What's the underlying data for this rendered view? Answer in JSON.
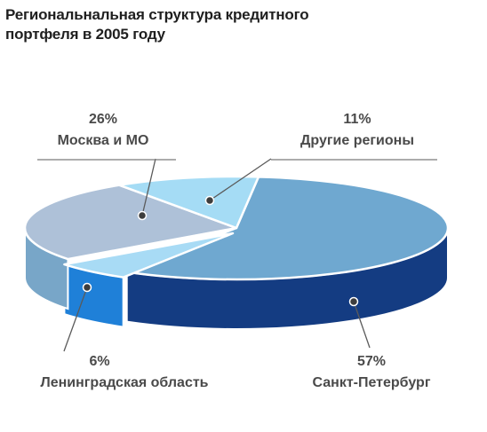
{
  "chart_data": {
    "type": "pie",
    "title": "Региональнальная структура кредитного портфеля в 2005 году",
    "slices": [
      {
        "label": "Санкт-Петербург",
        "value": 57,
        "value_label": "57%",
        "color": "#6fa8d0",
        "side_color": "#143c82"
      },
      {
        "label": "Ленинградская область",
        "value": 6,
        "value_label": "6%",
        "color": "#a8dbf5",
        "side_color": "#1f80d8"
      },
      {
        "label": "Москва и МО",
        "value": 26,
        "value_label": "26%",
        "color": "#aec1d8",
        "side_color": "#78a6c8"
      },
      {
        "label": "Другие регионы",
        "value": 11,
        "value_label": "11%",
        "color": "#a5dcf5",
        "side_color": "#5fa0d0"
      }
    ],
    "legend": "none",
    "labels": "outside-with-leader-lines"
  }
}
